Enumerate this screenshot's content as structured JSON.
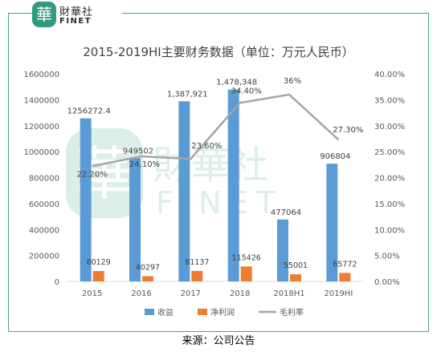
{
  "logo": {
    "mark": "華",
    "cn": "財華社",
    "en": "FINET"
  },
  "watermark": {
    "cn": "財華社",
    "en": "FINET",
    "mark": "華"
  },
  "source": "来源：公司公告",
  "colors": {
    "revenue": "#5b9bd5",
    "profit": "#ed7d31",
    "margin": "#a5a5a5",
    "frame": "#4aa38f"
  },
  "chart_data": {
    "type": "bar",
    "title": "2015-2019HI主要财务数据（单位：万元人民币）",
    "categories": [
      "2015",
      "2016",
      "2017",
      "2018",
      "2018H1",
      "2019HI"
    ],
    "series": [
      {
        "name": "收益",
        "kind": "bar",
        "axis": "left",
        "color": "#5b9bd5",
        "values": [
          1256272.4,
          949502,
          1387921,
          1478348,
          477064,
          906804
        ],
        "labels": [
          "1256272.4",
          "949502",
          "1,387,921",
          "1,478,348",
          "477064",
          "906804"
        ]
      },
      {
        "name": "净利润",
        "kind": "bar",
        "axis": "left",
        "color": "#ed7d31",
        "values": [
          80129,
          40297,
          81137,
          115426,
          55001,
          65772
        ],
        "labels": [
          "80129",
          "40297",
          "81137",
          "115426",
          "55001",
          "65772"
        ]
      },
      {
        "name": "毛利率",
        "kind": "line",
        "axis": "right",
        "color": "#a5a5a5",
        "values": [
          22.2,
          24.1,
          23.6,
          34.4,
          36,
          27.3
        ],
        "labels": [
          "22.20%",
          "24.10%",
          "23.60%",
          "34.40%",
          "36%",
          "27.30%"
        ]
      }
    ],
    "y_left": {
      "min": 0,
      "max": 1600000,
      "ticks": [
        "0",
        "200000",
        "400000",
        "600000",
        "800000",
        "1000000",
        "1200000",
        "1400000",
        "1600000"
      ]
    },
    "y_right": {
      "min": 0,
      "max": 40,
      "ticks": [
        "0.00%",
        "5.00%",
        "10.00%",
        "15.00%",
        "20.00%",
        "25.00%",
        "30.00%",
        "35.00%",
        "40.00%"
      ]
    },
    "legend_position": "bottom",
    "grid": false
  }
}
